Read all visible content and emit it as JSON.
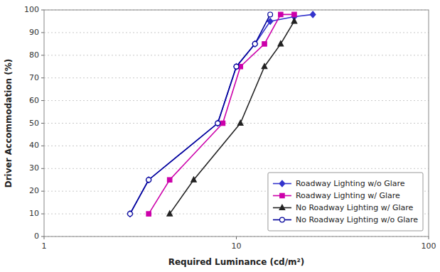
{
  "chart_data": {
    "type": "line",
    "xlabel": "Required Luminance (cd/m²)",
    "ylabel": "Driver Accommodation (%)",
    "log": "x",
    "xlim": [
      1,
      100
    ],
    "xticks": [
      1,
      10,
      100
    ],
    "ylim": [
      0,
      100
    ],
    "yticks": [
      0,
      10,
      20,
      30,
      40,
      50,
      60,
      70,
      80,
      90,
      100
    ],
    "grid": "y",
    "legend": "lower right",
    "series": [
      {
        "name": "Roadway Lighting w/o Glare",
        "color": "#3333CC",
        "marker": "diamond",
        "x": [
          2.8,
          3.5,
          8.0,
          10.0,
          12.5,
          15.0,
          20.0,
          25.0
        ],
        "values": [
          10,
          25,
          50,
          75,
          85,
          95,
          97,
          98
        ]
      },
      {
        "name": "Roadway Lighting w/ Glare",
        "color": "#CC00AA",
        "marker": "square",
        "x": [
          3.5,
          4.5,
          8.5,
          10.5,
          14.0,
          17.0,
          20.0
        ],
        "values": [
          10,
          25,
          50,
          75,
          85,
          98,
          98
        ]
      },
      {
        "name": "No Roadway Lighting w/ Glare",
        "color": "#222222",
        "marker": "triangle",
        "x": [
          4.5,
          6.0,
          10.5,
          14.0,
          17.0,
          20.0
        ],
        "values": [
          10,
          25,
          50,
          75,
          85,
          95
        ]
      },
      {
        "name": "No Roadway Lighting w/o Glare",
        "color": "#000099",
        "marker": "open-circle",
        "x": [
          2.8,
          3.5,
          8.0,
          10.0,
          12.5,
          15.0
        ],
        "values": [
          10,
          25,
          50,
          75,
          85,
          98
        ]
      }
    ]
  }
}
